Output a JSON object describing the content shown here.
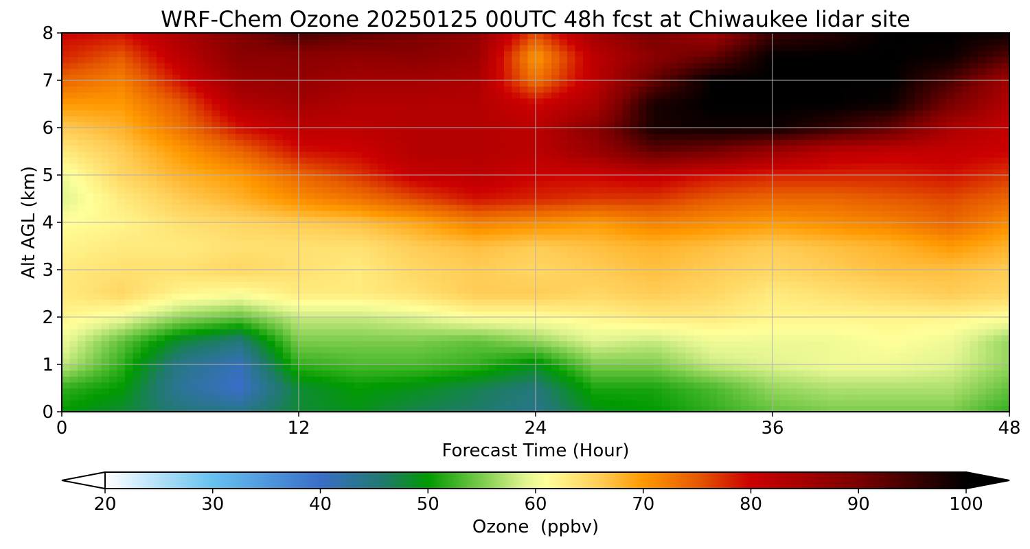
{
  "chart_data": {
    "type": "heatmap",
    "title": "WRF-Chem Ozone  20250125 00UTC 48h fcst at Chiwaukee lidar site",
    "xlabel": "Forecast Time (Hour)",
    "ylabel": "Alt AGL (km)",
    "xlim": [
      0,
      48
    ],
    "ylim": [
      0,
      8
    ],
    "xticks": [
      "0",
      "12",
      "24",
      "36",
      "48"
    ],
    "yticks": [
      "0",
      "1",
      "2",
      "3",
      "4",
      "5",
      "6",
      "7",
      "8"
    ],
    "grid": true,
    "colorbar": {
      "label": "Ozone  (ppbv)",
      "ticks": [
        "20",
        "30",
        "40",
        "50",
        "60",
        "70",
        "80",
        "90",
        "100"
      ],
      "range": [
        20,
        100
      ],
      "extend": "both",
      "stops": [
        {
          "v": 20,
          "c": "#ffffff"
        },
        {
          "v": 30,
          "c": "#66c2f0"
        },
        {
          "v": 40,
          "c": "#3a6ec8"
        },
        {
          "v": 46,
          "c": "#1f7a6a"
        },
        {
          "v": 50,
          "c": "#009a00"
        },
        {
          "v": 55,
          "c": "#7ccc4c"
        },
        {
          "v": 59,
          "c": "#e0f490"
        },
        {
          "v": 61,
          "c": "#ffff99"
        },
        {
          "v": 66,
          "c": "#ffcc55"
        },
        {
          "v": 70,
          "c": "#ff9900"
        },
        {
          "v": 75,
          "c": "#e65a00"
        },
        {
          "v": 80,
          "c": "#cc0000"
        },
        {
          "v": 90,
          "c": "#7a0000"
        },
        {
          "v": 100,
          "c": "#000000"
        }
      ]
    },
    "x_hours": [
      0,
      3,
      6,
      9,
      12,
      15,
      18,
      21,
      24,
      27,
      30,
      33,
      36,
      39,
      42,
      45,
      48
    ],
    "y_km": [
      0,
      0.5,
      1,
      1.5,
      2,
      2.5,
      3,
      3.5,
      4,
      4.5,
      5,
      5.5,
      6,
      6.5,
      7,
      7.5,
      8
    ],
    "values_ppbv": [
      [
        50,
        48,
        45,
        44,
        48,
        49,
        47,
        46,
        44,
        49,
        50,
        52,
        54,
        55,
        55,
        55,
        52
      ],
      [
        52,
        50,
        43,
        40,
        48,
        50,
        49,
        47,
        45,
        51,
        51,
        53,
        56,
        57,
        57,
        57,
        54
      ],
      [
        58,
        52,
        44,
        41,
        52,
        53,
        53,
        52,
        49,
        55,
        55,
        58,
        59,
        60,
        60,
        59,
        56
      ],
      [
        60,
        54,
        48,
        45,
        55,
        55,
        55,
        54,
        56,
        59,
        58,
        60,
        60,
        60,
        61,
        60,
        56
      ],
      [
        62,
        60,
        56,
        54,
        58,
        58,
        59,
        61,
        61,
        62,
        63,
        63,
        62,
        62,
        62,
        62,
        61
      ],
      [
        63,
        65,
        62,
        61,
        63,
        63,
        64,
        66,
        66,
        65,
        66,
        65,
        63,
        64,
        65,
        66,
        65
      ],
      [
        63,
        64,
        64,
        65,
        64,
        63,
        65,
        66,
        65,
        66,
        67,
        66,
        65,
        66,
        67,
        67,
        66
      ],
      [
        62,
        63,
        63,
        64,
        64,
        64,
        66,
        67,
        66,
        67,
        68,
        67,
        66,
        67,
        68,
        70,
        68
      ],
      [
        61,
        62,
        64,
        65,
        66,
        67,
        69,
        72,
        71,
        70,
        72,
        71,
        70,
        71,
        72,
        74,
        71
      ],
      [
        59,
        63,
        66,
        68,
        71,
        73,
        76,
        79,
        78,
        77,
        77,
        75,
        74,
        74,
        75,
        76,
        74
      ],
      [
        60,
        65,
        68,
        70,
        74,
        77,
        81,
        82,
        80,
        80,
        81,
        79,
        78,
        78,
        78,
        79,
        77
      ],
      [
        63,
        66,
        70,
        74,
        79,
        80,
        83,
        83,
        82,
        86,
        92,
        90,
        86,
        82,
        81,
        81,
        80
      ],
      [
        66,
        68,
        73,
        79,
        82,
        82,
        83,
        83,
        82,
        88,
        98,
        99,
        99,
        96,
        92,
        84,
        81
      ],
      [
        70,
        70,
        75,
        83,
        85,
        83,
        83,
        83,
        80,
        84,
        98,
        100,
        100,
        100,
        99,
        90,
        83
      ],
      [
        74,
        72,
        79,
        86,
        87,
        85,
        85,
        84,
        73,
        82,
        92,
        100,
        100,
        100,
        100,
        94,
        85
      ],
      [
        78,
        75,
        82,
        88,
        88,
        87,
        88,
        86,
        70,
        82,
        88,
        92,
        100,
        100,
        100,
        99,
        93
      ],
      [
        80,
        79,
        84,
        89,
        94,
        92,
        90,
        87,
        76,
        85,
        90,
        85,
        95,
        97,
        100,
        100,
        99
      ]
    ]
  }
}
